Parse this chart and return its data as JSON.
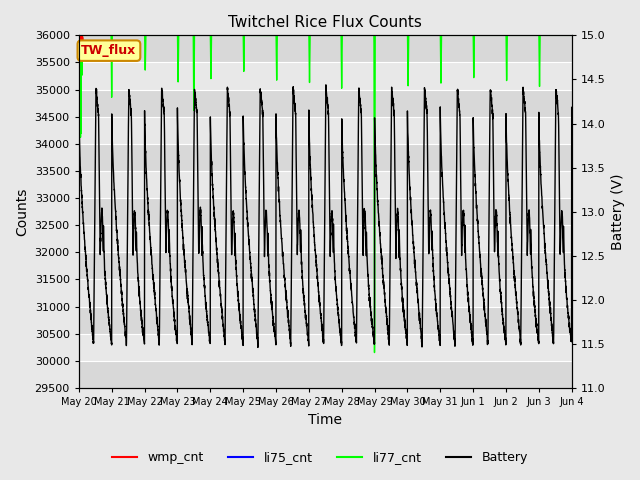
{
  "title": "Twitchel Rice Flux Counts",
  "xlabel": "Time",
  "ylabel_left": "Counts",
  "ylabel_right": "Battery (V)",
  "ylim_left": [
    29500,
    36000
  ],
  "ylim_right": [
    11.0,
    15.0
  ],
  "yticks_left": [
    29500,
    30000,
    30500,
    31000,
    31500,
    32000,
    32500,
    33000,
    33500,
    34000,
    34500,
    35000,
    35500,
    36000
  ],
  "yticks_right": [
    11.0,
    11.5,
    12.0,
    12.5,
    13.0,
    13.5,
    14.0,
    14.5,
    15.0
  ],
  "bg_color": "#e8e8e8",
  "plot_bg_color": "#f0f0f0",
  "grid_color": "#ffffff",
  "annotation_box_text": "TW_flux",
  "annotation_box_color": "#ffff99",
  "annotation_box_edgecolor": "#cc8800",
  "annotation_text_color": "#cc0000",
  "xtick_labels": [
    "May 20",
    "May 21",
    "May 22",
    "May 23",
    "May 24",
    "May 25",
    "May 26",
    "May 27",
    "May 28",
    "May 29",
    "May 30",
    "May 31",
    "Jun 1",
    "Jun 2",
    "Jun 3",
    "Jun 4"
  ],
  "legend_items": [
    "wmp_cnt",
    "li75_cnt",
    "li77_cnt",
    "Battery"
  ],
  "legend_colors": [
    "#ff0000",
    "#0000ff",
    "#00ff00",
    "#000000"
  ],
  "band_colors": [
    "#d8d8d8",
    "#e8e8e8"
  ],
  "n_days": 15,
  "hrs_per_day": 24,
  "battery_day_peak": 14.2,
  "battery_night_min": 11.5,
  "battery_charge_peak": 14.4,
  "green_spike_positions_hrs": [
    0.5,
    1.2,
    1.8,
    2.2,
    24,
    48.5,
    72.5,
    84,
    96.5,
    120.5,
    144.5,
    168.5,
    192,
    216,
    240.5,
    264.5,
    288.5,
    312.5,
    336.5
  ],
  "green_spike_depths": [
    35000,
    34000,
    33800,
    35200,
    34800,
    35300,
    35100,
    34500,
    35200,
    35300,
    35100,
    35100,
    35000,
    29700,
    35000,
    35100,
    35200,
    35100,
    35000
  ]
}
